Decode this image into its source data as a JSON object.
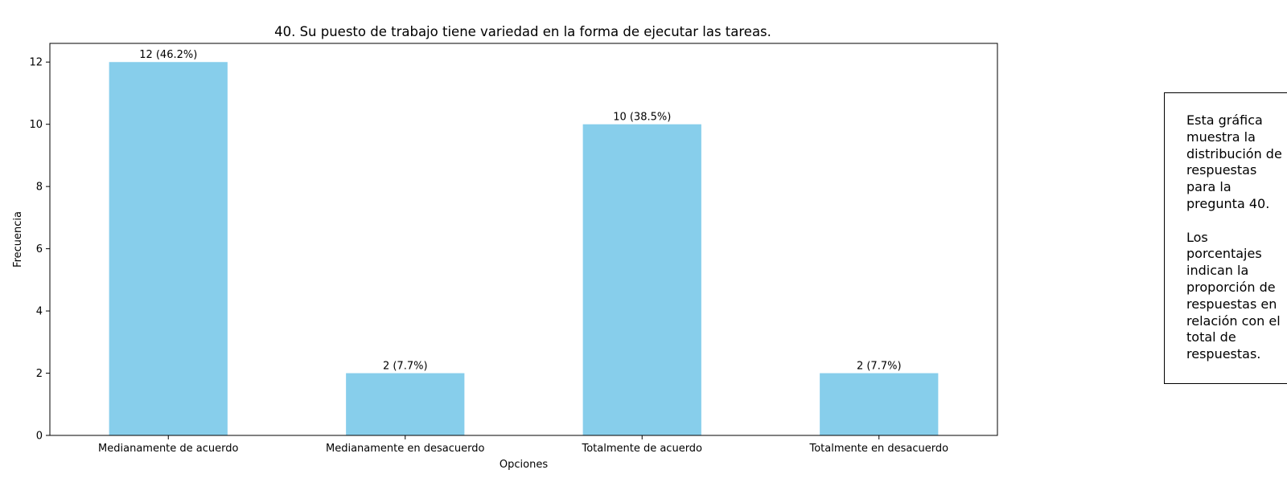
{
  "chart_data": {
    "type": "bar",
    "title": "40. Su puesto de trabajo tiene variedad en la forma de ejecutar las tareas.",
    "xlabel": "Opciones",
    "ylabel": "Frecuencia",
    "categories": [
      "Medianamente de acuerdo",
      "Medianamente en desacuerdo",
      "Totalmente de acuerdo",
      "Totalmente en desacuerdo"
    ],
    "values": [
      12,
      2,
      10,
      2
    ],
    "bar_labels": [
      "12 (46.2%)",
      "2 (7.7%)",
      "10 (38.5%)",
      "2 (7.7%)"
    ],
    "ylim": [
      0,
      12.6
    ],
    "yticks": [
      0,
      2,
      4,
      6,
      8,
      10,
      12
    ],
    "grid": false,
    "bar_color": "#87CEEB"
  },
  "note": {
    "paragraph1": [
      "Esta gráfica",
      "muestra la",
      "distribución de",
      "respuestas",
      "para la",
      "pregunta 40."
    ],
    "paragraph2": [
      "Los",
      "porcentajes",
      "indican la",
      "proporción de",
      "respuestas en",
      "relación con el",
      "total de",
      "respuestas."
    ]
  }
}
